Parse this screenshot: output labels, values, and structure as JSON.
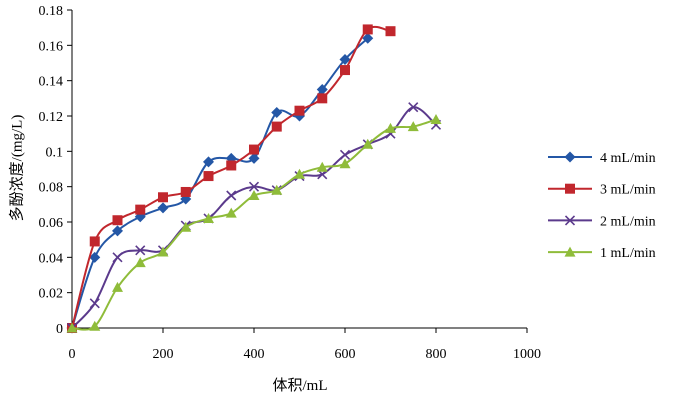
{
  "chart_data": {
    "type": "line",
    "xlabel": "体积/mL",
    "ylabel": "多酚浓度/(mg/L)",
    "xlim": [
      0,
      1000
    ],
    "ylim": [
      0,
      0.18
    ],
    "xticks": [
      "0",
      "200",
      "400",
      "600",
      "800",
      "1000"
    ],
    "yticks": [
      "0",
      "0.02",
      "0.04",
      "0.06",
      "0.08",
      "0.1",
      "0.12",
      "0.14",
      "0.16",
      "0.18"
    ],
    "grid": false,
    "legend": "right",
    "smooth": true,
    "series": [
      {
        "name": "4 mL/min",
        "color": "#2457a6",
        "marker": "diamond",
        "x": [
          0,
          50,
          100,
          150,
          200,
          250,
          300,
          350,
          400,
          450,
          500,
          550,
          600,
          650
        ],
        "y": [
          0,
          0.04,
          0.055,
          0.063,
          0.068,
          0.073,
          0.094,
          0.096,
          0.096,
          0.122,
          0.12,
          0.135,
          0.152,
          0.164
        ]
      },
      {
        "name": "3 mL/min",
        "color": "#c1272d",
        "marker": "square",
        "x": [
          0,
          50,
          100,
          150,
          200,
          250,
          300,
          350,
          400,
          450,
          500,
          550,
          600,
          650,
          700
        ],
        "y": [
          0,
          0.049,
          0.061,
          0.067,
          0.074,
          0.077,
          0.086,
          0.092,
          0.101,
          0.114,
          0.123,
          0.13,
          0.146,
          0.169,
          0.168
        ]
      },
      {
        "name": "2 mL/min",
        "color": "#5b3a8c",
        "marker": "x",
        "x": [
          0,
          50,
          100,
          150,
          200,
          250,
          300,
          350,
          400,
          450,
          500,
          550,
          600,
          650,
          700,
          750,
          800
        ],
        "y": [
          0,
          0.014,
          0.04,
          0.044,
          0.044,
          0.058,
          0.062,
          0.075,
          0.08,
          0.078,
          0.086,
          0.087,
          0.098,
          0.104,
          0.11,
          0.125,
          0.115
        ]
      },
      {
        "name": "1 mL/min",
        "color": "#8fbc3a",
        "marker": "triangle",
        "x": [
          0,
          50,
          100,
          150,
          200,
          250,
          300,
          350,
          400,
          450,
          500,
          550,
          600,
          650,
          700,
          750,
          800
        ],
        "y": [
          0,
          0.001,
          0.023,
          0.037,
          0.043,
          0.057,
          0.062,
          0.065,
          0.075,
          0.078,
          0.087,
          0.091,
          0.093,
          0.104,
          0.113,
          0.114,
          0.118
        ]
      }
    ]
  }
}
